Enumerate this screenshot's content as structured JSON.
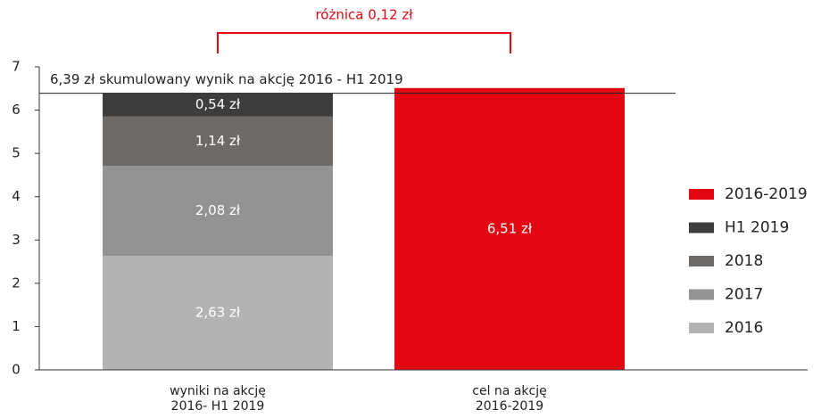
{
  "chart_data": {
    "type": "stacked_bar",
    "categories": [
      [
        "wyniki na akcję",
        "2016- H1 2019"
      ],
      [
        "cel na akcję",
        "2016-2019"
      ]
    ],
    "series": [
      {
        "name": "2016",
        "color": "#b3b3b3",
        "values": [
          2.63,
          null
        ],
        "value_labels": [
          "2,63 zł",
          null
        ]
      },
      {
        "name": "2017",
        "color": "#939393",
        "values": [
          2.08,
          null
        ],
        "value_labels": [
          "2,08 zł",
          null
        ]
      },
      {
        "name": "2018",
        "color": "#6d6a68",
        "values": [
          1.14,
          null
        ],
        "value_labels": [
          "1,14 zł",
          null
        ]
      },
      {
        "name": "H1 2019",
        "color": "#3d3d3d",
        "values": [
          0.54,
          null
        ],
        "value_labels": [
          "0,54 zł",
          null
        ]
      },
      {
        "name": "2016-2019",
        "color": "#e30613",
        "values": [
          null,
          6.51
        ],
        "value_labels": [
          null,
          "6,51 zł"
        ]
      }
    ],
    "ylim": [
      0,
      7
    ],
    "yticks": [
      0,
      1,
      2,
      3,
      4,
      5,
      6,
      7
    ],
    "reference_line": {
      "value": 6.39,
      "label": "6,39 zł skumulowany wynik na akcję 2016 - H1 2019"
    },
    "annotation": "różnica 0,12 zł",
    "legend": "right"
  }
}
